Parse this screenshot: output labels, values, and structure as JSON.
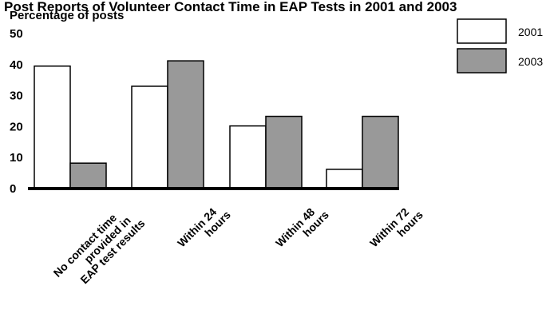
{
  "chart_data": {
    "type": "bar",
    "title": "Post Reports of Volunteer Contact Time in EAP Tests in 2001 and 2003",
    "ylabel": "Percentage of posts",
    "xlabel": "",
    "ylim": [
      0,
      50
    ],
    "yticks": [
      0,
      10,
      20,
      30,
      40,
      50
    ],
    "grid": false,
    "legend_position": "top-right",
    "categories": [
      [
        "No contact time",
        "provided in",
        "EAP test results"
      ],
      [
        "Within 24",
        "hours"
      ],
      [
        "Within 48",
        "hours"
      ],
      [
        "Within 72",
        "hours"
      ]
    ],
    "series": [
      {
        "name": "2001",
        "color": "#ffffff",
        "values": [
          39.5,
          33,
          20.2,
          6.2
        ]
      },
      {
        "name": "2003",
        "color": "#999999",
        "values": [
          8.2,
          41.2,
          23.3,
          23.3
        ]
      }
    ]
  }
}
